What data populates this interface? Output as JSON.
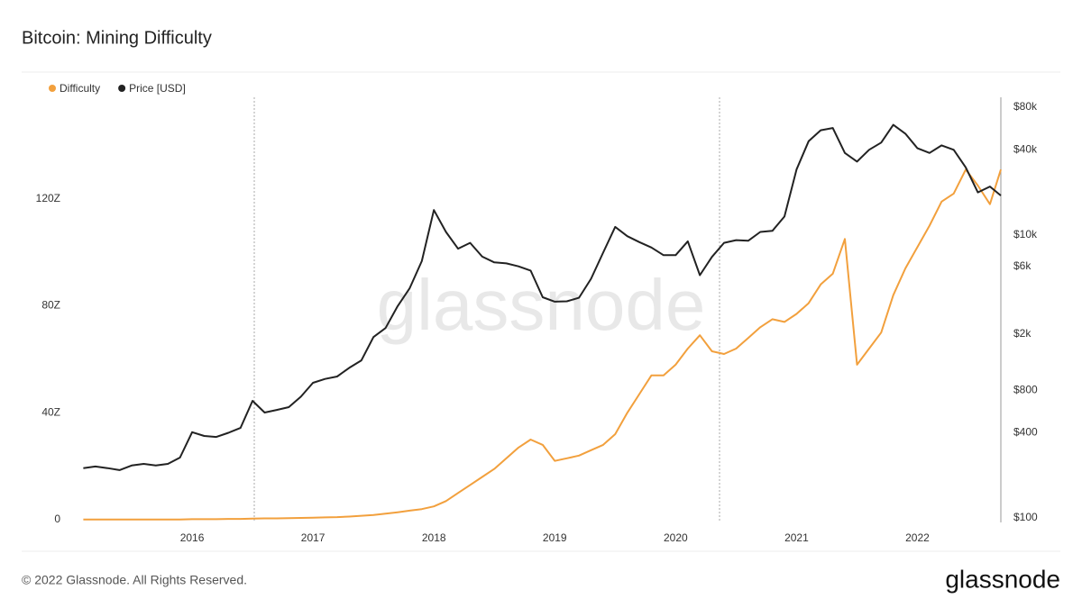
{
  "chart_data": {
    "type": "line",
    "title": "Bitcoin: Mining Difficulty",
    "watermark": "glassnode",
    "copyright": "© 2022 Glassnode. All Rights Reserved.",
    "brand": "glassnode",
    "legend": "top-left",
    "x": [
      2015.1,
      2015.2,
      2015.3,
      2015.4,
      2015.5,
      2015.6,
      2015.7,
      2015.8,
      2015.9,
      2016.0,
      2016.1,
      2016.2,
      2016.3,
      2016.4,
      2016.5,
      2016.6,
      2016.7,
      2016.8,
      2016.9,
      2017.0,
      2017.1,
      2017.2,
      2017.3,
      2017.4,
      2017.5,
      2017.6,
      2017.7,
      2017.8,
      2017.9,
      2018.0,
      2018.1,
      2018.2,
      2018.3,
      2018.4,
      2018.5,
      2018.6,
      2018.7,
      2018.8,
      2018.9,
      2019.0,
      2019.1,
      2019.2,
      2019.3,
      2019.4,
      2019.5,
      2019.6,
      2019.7,
      2019.8,
      2019.9,
      2020.0,
      2020.1,
      2020.2,
      2020.3,
      2020.4,
      2020.5,
      2020.6,
      2020.7,
      2020.8,
      2020.9,
      2021.0,
      2021.1,
      2021.2,
      2021.3,
      2021.4,
      2021.5,
      2021.6,
      2021.7,
      2021.8,
      2021.9,
      2022.0,
      2022.1,
      2022.2,
      2022.3,
      2022.4,
      2022.5,
      2022.6,
      2022.69
    ],
    "xlim": [
      2015.03,
      2022.69
    ],
    "xticks": [
      2016,
      2017,
      2018,
      2019,
      2020,
      2021,
      2022
    ],
    "ylim": [
      -1,
      158
    ],
    "yticks": [
      {
        "value": 0,
        "label": "0"
      },
      {
        "value": 40,
        "label": "40Z"
      },
      {
        "value": 80,
        "label": "80Z"
      },
      {
        "value": 120,
        "label": "120Z"
      }
    ],
    "y2lim": [
      93,
      94000
    ],
    "y2log": true,
    "y2ticks": [
      {
        "value": 100,
        "label": "$100"
      },
      {
        "value": 400,
        "label": "$400"
      },
      {
        "value": 800,
        "label": "$800"
      },
      {
        "value": 2000,
        "label": "$2k"
      },
      {
        "value": 6000,
        "label": "$6k"
      },
      {
        "value": 10000,
        "label": "$10k"
      },
      {
        "value": 40000,
        "label": "$40k"
      },
      {
        "value": 80000,
        "label": "$80k"
      }
    ],
    "series": [
      {
        "name": "Difficulty",
        "color": "#f2a03d",
        "axis": "y",
        "values": [
          0.1,
          0.1,
          0.1,
          0.1,
          0.1,
          0.1,
          0.1,
          0.1,
          0.1,
          0.2,
          0.2,
          0.2,
          0.3,
          0.3,
          0.4,
          0.5,
          0.5,
          0.6,
          0.7,
          0.8,
          0.9,
          1.0,
          1.2,
          1.5,
          1.8,
          2.3,
          2.8,
          3.4,
          4.0,
          5,
          7,
          10,
          13,
          16,
          19,
          23,
          27,
          30,
          28,
          22,
          23,
          24,
          26,
          28,
          32,
          40,
          47,
          54,
          54,
          58,
          64,
          69,
          63,
          62,
          64,
          68,
          72,
          75,
          74,
          77,
          81,
          88,
          92,
          105,
          58,
          64,
          70,
          84,
          94,
          102,
          110,
          119,
          122,
          131,
          125,
          118,
          131
        ]
      },
      {
        "name": "Price [USD]",
        "color": "#222222",
        "axis": "y2",
        "values": [
          225,
          231,
          225,
          218,
          235,
          241,
          235,
          241,
          267,
          404,
          380,
          374,
          400,
          433,
          673,
          556,
          580,
          607,
          720,
          902,
          960,
          1000,
          1150,
          1300,
          1900,
          2200,
          3140,
          4210,
          6530,
          15000,
          10500,
          8000,
          8800,
          7030,
          6400,
          6300,
          6000,
          5600,
          3630,
          3380,
          3400,
          3600,
          4900,
          7500,
          11400,
          9800,
          8900,
          8150,
          7200,
          7200,
          9020,
          5200,
          7000,
          8800,
          9200,
          9100,
          10500,
          10700,
          13500,
          29000,
          46000,
          55000,
          57000,
          38000,
          33000,
          40000,
          45000,
          60000,
          52000,
          41000,
          38000,
          43000,
          40000,
          30000,
          20000,
          22000,
          19000
        ]
      }
    ]
  }
}
